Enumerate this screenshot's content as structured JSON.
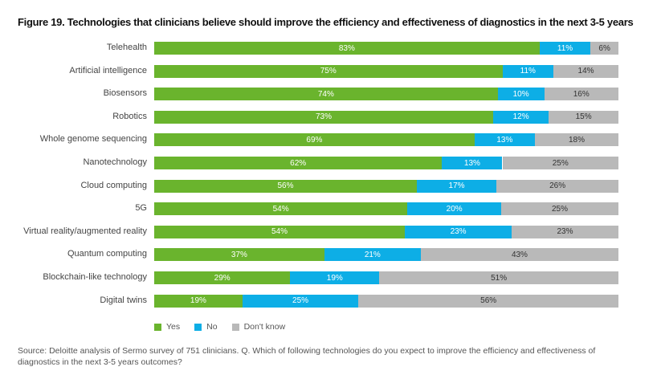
{
  "chart_data": {
    "type": "bar",
    "orientation": "horizontal",
    "stacked": true,
    "title": "Figure 19. Technologies that clinicians believe should improve the efficiency and effectiveness of diagnostics in the next 3-5 years",
    "categories": [
      "Telehealth",
      "Artificial intelligence",
      "Biosensors",
      "Robotics",
      "Whole genome sequencing",
      "Nanotechnology",
      "Cloud computing",
      "5G",
      "Virtual reality/augmented reality",
      "Quantum computing",
      "Blockchain-like technology",
      "Digital twins"
    ],
    "series": [
      {
        "name": "Yes",
        "color": "#6ab42d",
        "values": [
          83,
          75,
          74,
          73,
          69,
          62,
          56,
          54,
          54,
          37,
          29,
          19
        ]
      },
      {
        "name": "No",
        "color": "#0daee6",
        "values": [
          11,
          11,
          10,
          12,
          13,
          13,
          17,
          20,
          23,
          21,
          19,
          25
        ]
      },
      {
        "name": "Don't know",
        "color": "#b9b9b9",
        "values": [
          6,
          14,
          16,
          15,
          18,
          25,
          26,
          25,
          23,
          43,
          51,
          56
        ]
      }
    ],
    "value_suffix": "%",
    "legend_position": "bottom-left",
    "grid": false
  },
  "source": "Source: Deloitte analysis of Sermo survey of 751 clinicians. Q. Which of following technologies do you expect to improve the efficiency and effectiveness of diagnostics in the next 3-5 years outcomes?"
}
